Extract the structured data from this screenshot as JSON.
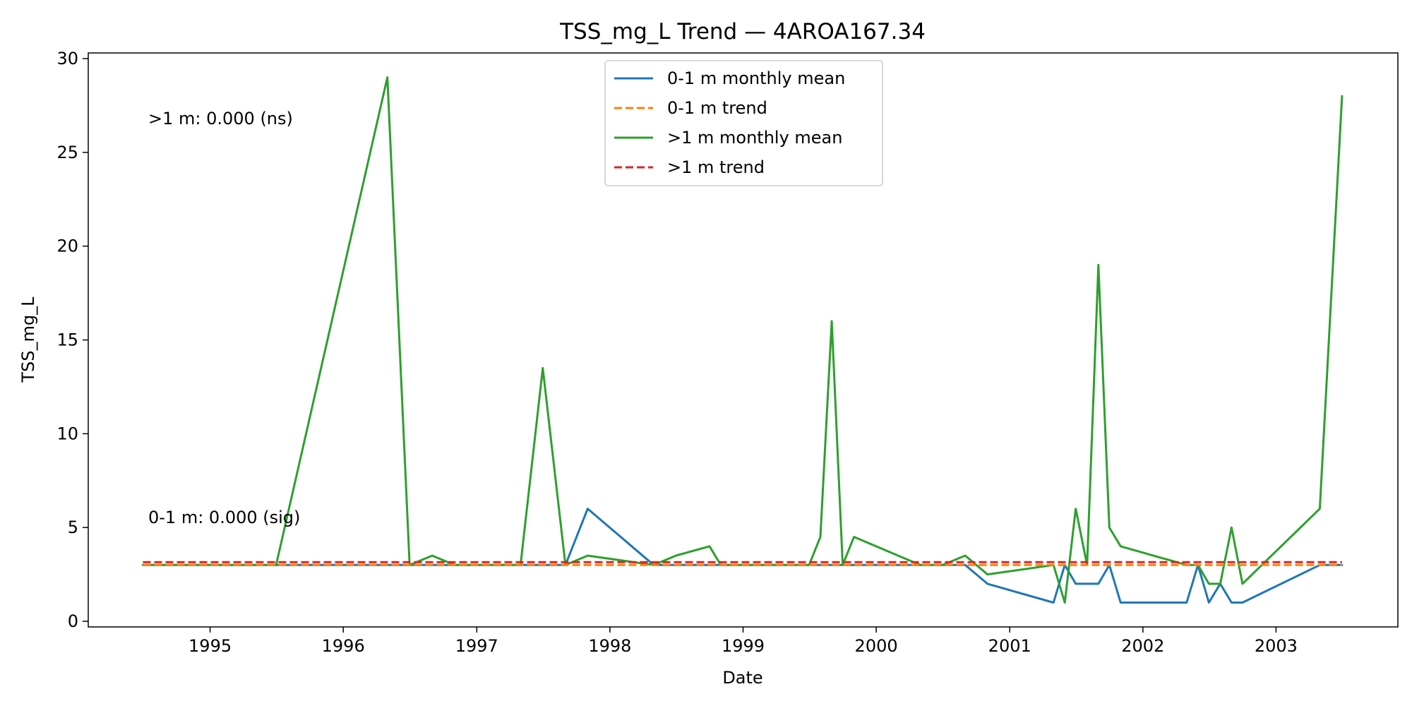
{
  "chart_data": {
    "type": "line",
    "title": "TSS_mg_L Trend — 4AROA167.34",
    "xlabel": "Date",
    "ylabel": "TSS_mg_L",
    "xlim": [
      "1994-02-01",
      "2003-12-01"
    ],
    "ylim": [
      -0.3,
      30.3
    ],
    "x_ticks": [
      "1995",
      "1996",
      "1997",
      "1998",
      "1999",
      "2000",
      "2001",
      "2002",
      "2003"
    ],
    "y_ticks": [
      0,
      5,
      10,
      15,
      20,
      25,
      30
    ],
    "grid": false,
    "legend": {
      "position": "top-center"
    },
    "annotations": [
      {
        "text": ">1 m: 0.000 (ns)",
        "x": "1994-07-01",
        "y": 26.7
      },
      {
        "text": "0-1 m: 0.000 (sig)",
        "x": "1994-07-01",
        "y": 5.4
      }
    ],
    "series": [
      {
        "name": "0-1 m monthly mean",
        "style": "solid",
        "color": "#1f77b4",
        "points": [
          [
            "1994-07-01",
            3
          ],
          [
            "1997-09-01",
            3
          ],
          [
            "1997-11-01",
            6
          ],
          [
            "1998-05-01",
            3
          ],
          [
            "2000-09-01",
            3
          ],
          [
            "2000-11-01",
            2
          ],
          [
            "2001-05-01",
            1
          ],
          [
            "2001-06-01",
            3
          ],
          [
            "2001-07-01",
            2
          ],
          [
            "2001-09-01",
            2
          ],
          [
            "2001-10-01",
            3
          ],
          [
            "2001-11-01",
            1
          ],
          [
            "2002-05-01",
            1
          ],
          [
            "2002-06-01",
            3
          ],
          [
            "2002-07-01",
            1
          ],
          [
            "2002-08-01",
            2
          ],
          [
            "2002-09-01",
            1
          ],
          [
            "2002-10-01",
            1
          ],
          [
            "2003-05-01",
            3
          ],
          [
            "2003-07-01",
            3
          ]
        ]
      },
      {
        "name": "0-1 m trend",
        "style": "dashed",
        "color": "#ff7f0e",
        "points": [
          [
            "1994-07-01",
            3
          ],
          [
            "2003-07-01",
            3
          ]
        ]
      },
      {
        "name": ">1 m monthly mean",
        "style": "solid",
        "color": "#2ca02c",
        "points": [
          [
            "1994-07-01",
            3
          ],
          [
            "1995-07-01",
            3
          ],
          [
            "1996-05-01",
            29
          ],
          [
            "1996-07-01",
            3
          ],
          [
            "1996-09-01",
            3.5
          ],
          [
            "1996-11-01",
            3
          ],
          [
            "1997-05-01",
            3
          ],
          [
            "1997-07-01",
            13.5
          ],
          [
            "1997-09-01",
            3
          ],
          [
            "1997-11-01",
            3.5
          ],
          [
            "1998-05-01",
            3
          ],
          [
            "1998-07-01",
            3.5
          ],
          [
            "1998-10-01",
            4
          ],
          [
            "1998-11-01",
            3
          ],
          [
            "1999-07-01",
            3
          ],
          [
            "1999-08-01",
            4.5
          ],
          [
            "1999-09-01",
            16
          ],
          [
            "1999-10-01",
            3
          ],
          [
            "1999-11-01",
            4.5
          ],
          [
            "2000-05-01",
            3
          ],
          [
            "2000-07-01",
            3
          ],
          [
            "2000-09-01",
            3.5
          ],
          [
            "2000-11-01",
            2.5
          ],
          [
            "2001-05-01",
            3
          ],
          [
            "2001-06-01",
            1
          ],
          [
            "2001-07-01",
            6
          ],
          [
            "2001-08-01",
            3
          ],
          [
            "2001-09-01",
            19
          ],
          [
            "2001-10-01",
            5
          ],
          [
            "2001-11-01",
            4
          ],
          [
            "2002-05-01",
            3
          ],
          [
            "2002-06-01",
            3
          ],
          [
            "2002-07-01",
            2
          ],
          [
            "2002-08-01",
            2
          ],
          [
            "2002-09-01",
            5
          ],
          [
            "2002-10-01",
            2
          ],
          [
            "2003-05-01",
            6
          ],
          [
            "2003-07-01",
            28
          ]
        ]
      },
      {
        "name": ">1 m trend",
        "style": "dashed",
        "color": "#d62728",
        "points": [
          [
            "1994-07-01",
            3.15
          ],
          [
            "2003-07-01",
            3.15
          ]
        ]
      }
    ]
  }
}
